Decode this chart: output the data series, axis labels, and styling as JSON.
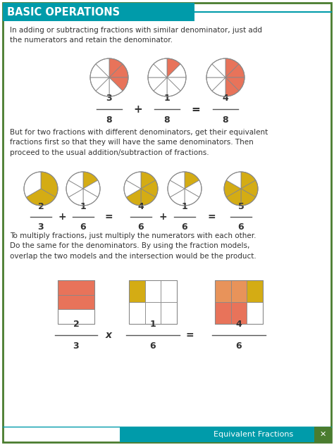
{
  "title": "BASIC OPERATIONS",
  "footer_text": "Equivalent Fractions",
  "bg_color": "#ffffff",
  "border_color": "#4a7c2f",
  "header_bg": "#009baa",
  "header_text_color": "#ffffff",
  "body_text_color": "#333333",
  "teal": "#009baa",
  "pink": "#e8735a",
  "yellow": "#d4ac14",
  "orange": "#e8935a",
  "para1": "In adding or subtracting fractions with similar denominator, just add\nthe numerators and retain the denominator.",
  "para2": "But for two fractions with different denominators, get their equivalent\nfractions first so that they will have the same denominators. Then\nproceed to the usual addition/subtraction of fractions.",
  "para3": "To multiply fractions, just multiply the numerators with each other.\nDo the same for the denominators. By using the fraction models,\noverlap the two models and the intersection would be the product."
}
